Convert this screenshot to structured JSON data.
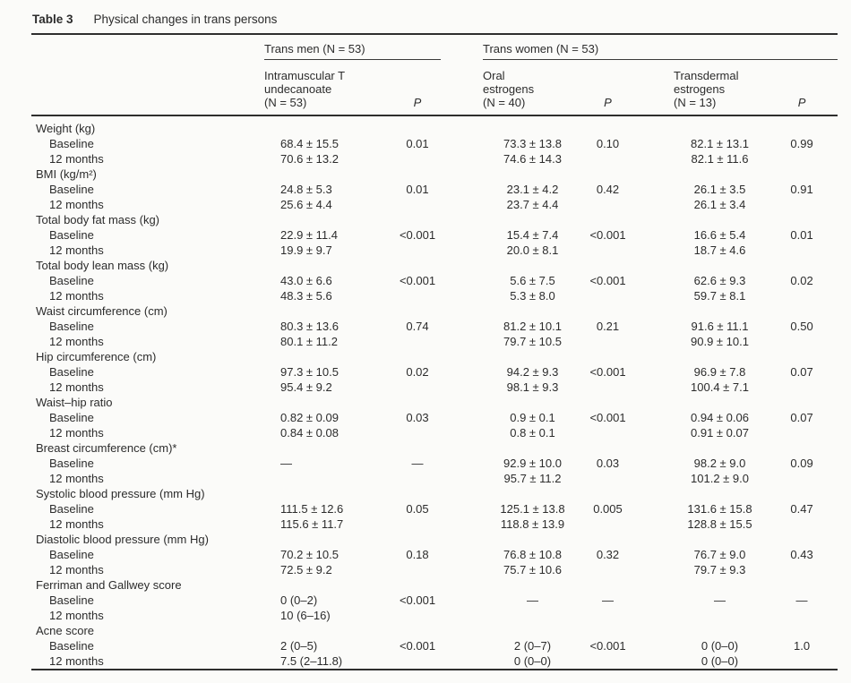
{
  "page": {
    "background": "#fbfbf9",
    "text_color": "#2c2c2c",
    "rule_color": "#2e2e2e"
  },
  "caption": {
    "label": "Table 3",
    "title": "Physical changes in trans persons"
  },
  "header": {
    "groups": [
      {
        "label": "Trans men (N = 53)"
      },
      {
        "label": "Trans women (N = 53)"
      }
    ],
    "columns": [
      {
        "name": "intramuscular-t-undecanoate",
        "label": "Intramuscular T\nundecanoate\n(N = 53)"
      },
      {
        "name": "p-trans-men",
        "label": "P"
      },
      {
        "name": "oral-estrogens",
        "label": "Oral\nestrogens\n(N = 40)"
      },
      {
        "name": "p-oral-estrogens",
        "label": "P"
      },
      {
        "name": "transdermal-estrogens",
        "label": "Transdermal\nestrogens\n(N = 13)"
      },
      {
        "name": "p-transdermal-estrogens",
        "label": "P"
      }
    ]
  },
  "sections": [
    {
      "label": "Weight (kg)",
      "rows": [
        {
          "label": "Baseline",
          "values": [
            "68.4 ± 15.5",
            "0.01",
            "73.3 ± 13.8",
            "0.10",
            "82.1 ± 13.1",
            "0.99"
          ]
        },
        {
          "label": "12 months",
          "values": [
            "70.6 ± 13.2",
            "",
            "74.6 ± 14.3",
            "",
            "82.1 ± 11.6",
            ""
          ]
        }
      ]
    },
    {
      "label": "BMI (kg/m²)",
      "rows": [
        {
          "label": "Baseline",
          "values": [
            "24.8 ± 5.3",
            "0.01",
            "23.1 ± 4.2",
            "0.42",
            "26.1 ± 3.5",
            "0.91"
          ]
        },
        {
          "label": "12 months",
          "values": [
            "25.6 ± 4.4",
            "",
            "23.7 ± 4.4",
            "",
            "26.1 ± 3.4",
            ""
          ]
        }
      ]
    },
    {
      "label": "Total body fat mass (kg)",
      "rows": [
        {
          "label": "Baseline",
          "values": [
            "22.9 ± 11.4",
            "<0.001",
            "15.4 ± 7.4",
            "<0.001",
            "16.6 ± 5.4",
            "0.01"
          ]
        },
        {
          "label": "12 months",
          "values": [
            "19.9 ± 9.7",
            "",
            "20.0 ± 8.1",
            "",
            "18.7 ± 4.6",
            ""
          ]
        }
      ]
    },
    {
      "label": "Total body lean mass (kg)",
      "rows": [
        {
          "label": "Baseline",
          "values": [
            "43.0 ± 6.6",
            "<0.001",
            "5.6 ± 7.5",
            "<0.001",
            "62.6 ± 9.3",
            "0.02"
          ]
        },
        {
          "label": "12 months",
          "values": [
            "48.3 ± 5.6",
            "",
            "5.3 ± 8.0",
            "",
            "59.7 ± 8.1",
            ""
          ]
        }
      ]
    },
    {
      "label": "Waist circumference (cm)",
      "rows": [
        {
          "label": "Baseline",
          "values": [
            "80.3 ± 13.6",
            "0.74",
            "81.2 ± 10.1",
            "0.21",
            "91.6 ± 11.1",
            "0.50"
          ]
        },
        {
          "label": "12 months",
          "values": [
            "80.1 ± 11.2",
            "",
            "79.7 ± 10.5",
            "",
            "90.9 ± 10.1",
            ""
          ]
        }
      ]
    },
    {
      "label": "Hip circumference (cm)",
      "rows": [
        {
          "label": "Baseline",
          "values": [
            "97.3 ± 10.5",
            "0.02",
            "94.2 ± 9.3",
            "<0.001",
            "96.9 ± 7.8",
            "0.07"
          ]
        },
        {
          "label": "12 months",
          "values": [
            "95.4 ± 9.2",
            "",
            "98.1 ± 9.3",
            "",
            "100.4 ± 7.1",
            ""
          ]
        }
      ]
    },
    {
      "label": "Waist–hip ratio",
      "rows": [
        {
          "label": "Baseline",
          "values": [
            "0.82 ± 0.09",
            "0.03",
            "0.9 ± 0.1",
            "<0.001",
            "0.94 ± 0.06",
            "0.07"
          ]
        },
        {
          "label": "12 months",
          "values": [
            "0.84 ± 0.08",
            "",
            "0.8 ± 0.1",
            "",
            "0.91 ± 0.07",
            ""
          ]
        }
      ]
    },
    {
      "label": "Breast circumference (cm)*",
      "rows": [
        {
          "label": "Baseline",
          "values": [
            "—",
            "—",
            "92.9 ± 10.0",
            "0.03",
            "98.2 ± 9.0",
            "0.09"
          ]
        },
        {
          "label": "12 months",
          "values": [
            "",
            "",
            "95.7 ± 11.2",
            "",
            "101.2 ± 9.0",
            ""
          ]
        }
      ]
    },
    {
      "label": "Systolic blood pressure (mm Hg)",
      "rows": [
        {
          "label": "Baseline",
          "values": [
            "111.5 ± 12.6",
            "0.05",
            "125.1 ± 13.8",
            "0.005",
            "131.6 ± 15.8",
            "0.47"
          ]
        },
        {
          "label": "12 months",
          "values": [
            "115.6 ± 11.7",
            "",
            "118.8 ± 13.9",
            "",
            "128.8 ± 15.5",
            ""
          ]
        }
      ]
    },
    {
      "label": "Diastolic blood pressure (mm Hg)",
      "rows": [
        {
          "label": "Baseline",
          "values": [
            "70.2 ± 10.5",
            "0.18",
            "76.8 ± 10.8",
            "0.32",
            "76.7 ± 9.0",
            "0.43"
          ]
        },
        {
          "label": "12 months",
          "values": [
            "72.5 ± 9.2",
            "",
            "75.7 ± 10.6",
            "",
            "79.7 ± 9.3",
            ""
          ]
        }
      ]
    },
    {
      "label": "Ferriman and Gallwey score",
      "rows": [
        {
          "label": "Baseline",
          "values": [
            "0 (0–2)",
            "<0.001",
            "—",
            "—",
            "—",
            "—"
          ]
        },
        {
          "label": "12 months",
          "values": [
            "10 (6–16)",
            "",
            "",
            "",
            "",
            ""
          ]
        }
      ]
    },
    {
      "label": "Acne score",
      "rows": [
        {
          "label": "Baseline",
          "values": [
            "2 (0–5)",
            "<0.001",
            "2 (0–7)",
            "<0.001",
            "0 (0–0)",
            "1.0"
          ]
        },
        {
          "label": "12 months",
          "values": [
            "7.5 (2–11.8)",
            "",
            "0 (0–0)",
            "",
            "0 (0–0)",
            ""
          ]
        }
      ]
    }
  ]
}
